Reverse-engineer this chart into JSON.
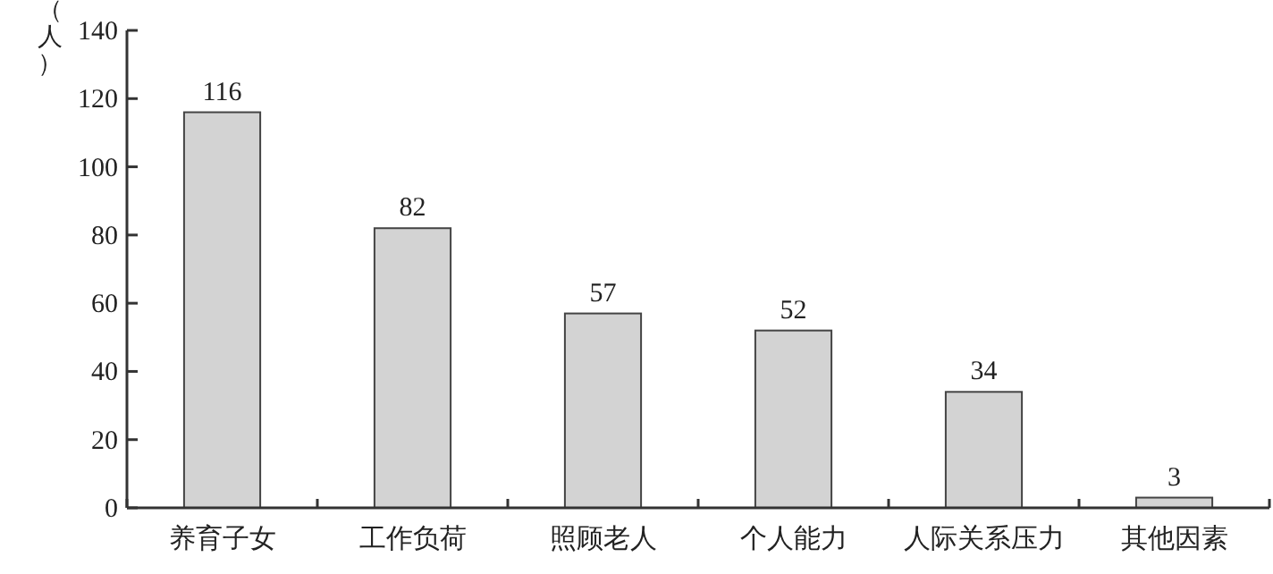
{
  "chart_data": {
    "type": "bar",
    "ylabel": "（人）",
    "categories": [
      "养育子女",
      "工作负荷",
      "照顾老人",
      "个人能力",
      "人际关系压力",
      "其他因素"
    ],
    "values": [
      116,
      82,
      57,
      52,
      34,
      3
    ],
    "color": "#d3d3d3",
    "ylim": [
      0,
      140
    ],
    "yticks": [
      0,
      20,
      40,
      60,
      80,
      100,
      120,
      140
    ],
    "data_labels": true
  }
}
